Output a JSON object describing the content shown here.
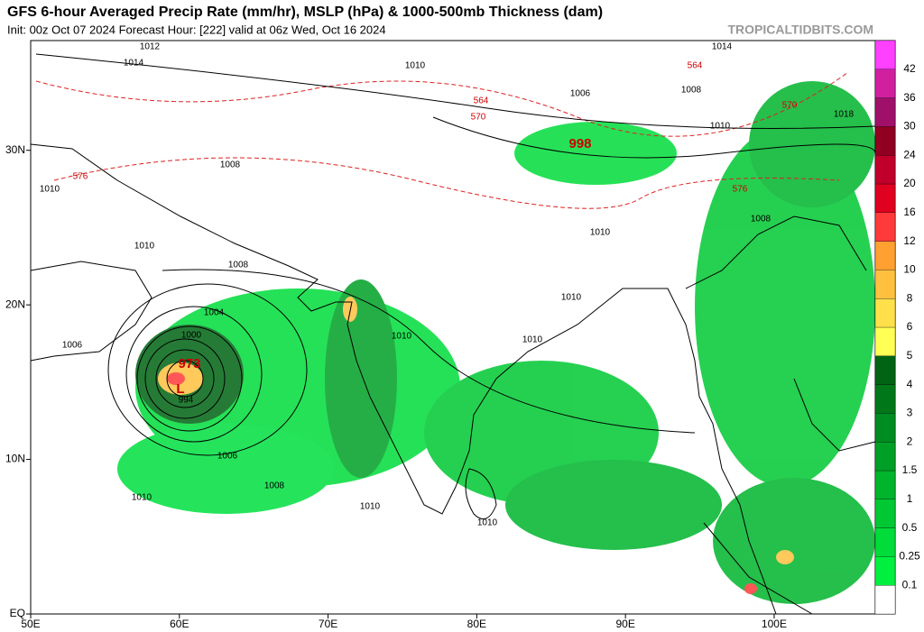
{
  "header": {
    "title": "GFS 6-hour Averaged Precip Rate (mm/hr), MSLP (hPa) & 1000-500mb Thickness (dam)",
    "subtitle": "Init: 00z Oct 07 2024   Forecast Hour: [222]   valid at 06z Wed, Oct 16 2024",
    "source": "TROPICALTIDBITS.COM"
  },
  "map": {
    "xlim": [
      50,
      106.8
    ],
    "ylim": [
      0,
      37.1
    ],
    "xticks": [
      {
        "value": 50,
        "label": "50E"
      },
      {
        "value": 60,
        "label": "60E"
      },
      {
        "value": 70,
        "label": "70E"
      },
      {
        "value": 80,
        "label": "80E"
      },
      {
        "value": 90,
        "label": "90E"
      },
      {
        "value": 100,
        "label": "100E"
      }
    ],
    "yticks": [
      {
        "value": 0,
        "label": "EQ"
      },
      {
        "value": 10,
        "label": "10N"
      },
      {
        "value": 20,
        "label": "20N"
      },
      {
        "value": 30,
        "label": "30N"
      }
    ],
    "contour_labels": [
      "1012",
      "1014",
      "1010",
      "1008",
      "1010",
      "1010",
      "1008",
      "1006",
      "1004",
      "1000",
      "973",
      "L",
      "994",
      "1006",
      "1008",
      "1010",
      "1010",
      "1010",
      "1010",
      "998",
      "1006",
      "1008",
      "1014",
      "1018",
      "1010",
      "1010",
      "1008",
      "576",
      "570",
      "576",
      "564",
      "570",
      "564",
      "1010",
      "1010"
    ],
    "colorbar": {
      "levels": [
        0.1,
        0.25,
        0.5,
        1,
        1.5,
        2,
        3,
        4,
        5,
        6,
        8,
        10,
        12,
        16,
        20,
        24,
        30,
        36,
        42
      ],
      "colors": [
        "#ffffff",
        "#00f040",
        "#00dc3a",
        "#00c832",
        "#00b42c",
        "#00a026",
        "#008c20",
        "#00781a",
        "#006414",
        "#ffff55",
        "#ffe04a",
        "#ffc040",
        "#ffa030",
        "#ff3a3a",
        "#e00020",
        "#c0002a",
        "#900020",
        "#a0106a",
        "#d020a0",
        "#ff40ff"
      ]
    }
  }
}
